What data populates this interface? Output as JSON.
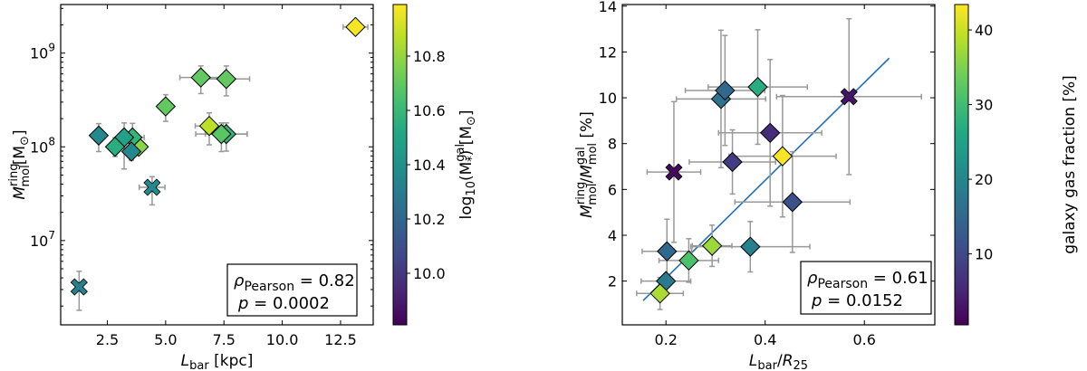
{
  "chart_data": [
    {
      "type": "scatter",
      "xlabel": {
        "main": "L",
        "sub": "bar",
        "rest": " [kpc]"
      },
      "ylabel": {
        "main": "M",
        "sup": "ring",
        "sub": "mol",
        "rest": "[M",
        "rest_sub": "⊙",
        "close": "]"
      },
      "x_scale": "linear",
      "y_scale": "log",
      "xlim": [
        0.5,
        13.9
      ],
      "ylim": [
        1260000.0,
        3300000000.0
      ],
      "xticks": [
        2.5,
        5.0,
        7.5,
        10.0,
        12.5
      ],
      "xtick_labels": [
        "2.5",
        "5.0",
        "7.5",
        "10.0",
        "12.5"
      ],
      "yticks": [
        10000000.0,
        100000000.0,
        1000000000.0
      ],
      "ytick_labels": [
        {
          "base": "10",
          "exp": "7"
        },
        {
          "base": "10",
          "exp": "8"
        },
        {
          "base": "10",
          "exp": "9"
        }
      ],
      "colorbar": {
        "label": {
          "pre": "log",
          "pre_sub": "10",
          "mid": "(M",
          "sup": "gal",
          "sub": "*",
          "rest": ") [M",
          "rest_sub": "⊙",
          "close": "]"
        },
        "range": [
          9.81,
          10.99
        ],
        "ticks": [
          10.0,
          10.2,
          10.4,
          10.6,
          10.8
        ],
        "tick_labels": [
          "10.0",
          "10.2",
          "10.4",
          "10.6",
          "10.8"
        ],
        "colormap": "viridis"
      },
      "annotation": {
        "rho_symbol": "ρ",
        "rho_sub": "Pearson",
        "rho_value": " = 0.82",
        "p_label": "p",
        "p_value": " =  0.0002"
      },
      "points": [
        {
          "x": 13.14,
          "y": 1900000000.0,
          "xerr": 0.53,
          "ylo": 1700000000.0,
          "yhi": 2100000000.0,
          "c": 10.98,
          "marker": "diamond"
        },
        {
          "x": 6.51,
          "y": 550000000.0,
          "xerr": 0.9,
          "ylo": 370000000.0,
          "yhi": 730000000.0,
          "c": 10.7,
          "marker": "diamond"
        },
        {
          "x": 7.6,
          "y": 530000000.0,
          "xerr": 1.0,
          "ylo": 350000000.0,
          "yhi": 730000000.0,
          "c": 10.7,
          "marker": "diamond"
        },
        {
          "x": 5.0,
          "y": 270000000.0,
          "xerr": 0.1,
          "ylo": 187000000.0,
          "yhi": 360000000.0,
          "c": 10.7,
          "marker": "diamond"
        },
        {
          "x": 6.87,
          "y": 167000000.0,
          "xerr": 0.6,
          "ylo": 105000000.0,
          "yhi": 230000000.0,
          "c": 10.87,
          "marker": "diamond"
        },
        {
          "x": 7.6,
          "y": 137000000.0,
          "xerr": 0.9,
          "ylo": 90000000.0,
          "yhi": 180000000.0,
          "c": 10.58,
          "marker": "diamond"
        },
        {
          "x": 7.39,
          "y": 137000000.0,
          "xerr": 1.1,
          "ylo": 89000000.0,
          "yhi": 180000000.0,
          "c": 10.68,
          "marker": "diamond"
        },
        {
          "x": 2.13,
          "y": 132000000.0,
          "xerr": 0.1,
          "ylo": 89000000.0,
          "yhi": 177000000.0,
          "c": 10.36,
          "marker": "diamond"
        },
        {
          "x": 3.85,
          "y": 100000000.0,
          "xerr": 0.1,
          "ylo": 85000000.0,
          "yhi": 115000000.0,
          "c": 10.78,
          "marker": "diamond"
        },
        {
          "x": 3.58,
          "y": 126000000.0,
          "xerr": 0.5,
          "ylo": 90000000.0,
          "yhi": 178000000.0,
          "c": 10.58,
          "marker": "diamond"
        },
        {
          "x": 3.22,
          "y": 126000000.0,
          "xerr": 0.15,
          "ylo": 58000000.0,
          "yhi": 180000000.0,
          "c": 10.48,
          "marker": "diamond"
        },
        {
          "x": 2.83,
          "y": 100000000.0,
          "xerr": 0.15,
          "ylo": 79000000.0,
          "yhi": 125000000.0,
          "c": 10.55,
          "marker": "diamond"
        },
        {
          "x": 3.53,
          "y": 89000000.0,
          "xerr": 0.15,
          "ylo": 72000000.0,
          "yhi": 110000000.0,
          "c": 10.36,
          "marker": "diamond"
        },
        {
          "x": 4.42,
          "y": 37000000.0,
          "xerr": 0.55,
          "ylo": 24000000.0,
          "yhi": 48000000.0,
          "c": 10.36,
          "marker": "x"
        },
        {
          "x": 1.29,
          "y": 3200000.0,
          "xerr": 0.1,
          "ylo": 1800000.0,
          "yhi": 4700000.0,
          "c": 10.32,
          "marker": "x"
        }
      ]
    },
    {
      "type": "scatter",
      "xlabel": {
        "main": "L",
        "sub": "bar",
        "mid": "/R",
        "sub2": "25"
      },
      "ylabel": {
        "main": "M",
        "sup": "ring",
        "sub": "mol",
        "mid": "/M",
        "sup2": "gal",
        "sub2": "mol",
        "rest": " [%]"
      },
      "x_scale": "linear",
      "y_scale": "linear",
      "xlim": [
        0.112,
        0.742
      ],
      "ylim": [
        0.09,
        14.07
      ],
      "xticks": [
        0.2,
        0.4,
        0.6
      ],
      "xtick_labels": [
        "0.2",
        "0.4",
        "0.6"
      ],
      "yticks": [
        2,
        4,
        6,
        8,
        10,
        12,
        14
      ],
      "ytick_labels": [
        "2",
        "4",
        "6",
        "8",
        "10",
        "12",
        "14"
      ],
      "colorbar": {
        "label": "galaxy gas fraction [%]",
        "range": [
          0.5,
          43.4
        ],
        "ticks": [
          10,
          20,
          30,
          40
        ],
        "tick_labels": [
          "10",
          "20",
          "30",
          "40"
        ],
        "colormap": "viridis"
      },
      "fit_line": {
        "x": [
          0.154,
          0.65
        ],
        "y": [
          1.15,
          11.73
        ],
        "color": "#1f6fbf"
      },
      "annotation": {
        "rho_symbol": "ρ",
        "rho_sub": "Pearson",
        "rho_value": " = 0.61",
        "p_label": "p",
        "p_value": " =  0.0152"
      },
      "points": [
        {
          "x": 0.311,
          "y": 9.95,
          "xerr": 0.09,
          "yerr": 3.0,
          "c": 17,
          "marker": "diamond"
        },
        {
          "x": 0.319,
          "y": 10.32,
          "xerr": 0.08,
          "yerr": 2.4,
          "c": 15,
          "marker": "diamond"
        },
        {
          "x": 0.385,
          "y": 10.47,
          "xerr": 0.1,
          "yerr": 2.5,
          "c": 27,
          "marker": "diamond"
        },
        {
          "x": 0.569,
          "y": 10.05,
          "xerr": 0.146,
          "yerr": 3.4,
          "c": 3,
          "marker": "x"
        },
        {
          "x": 0.41,
          "y": 8.47,
          "xerr": 0.104,
          "yerr": 3.2,
          "c": 6,
          "marker": "diamond"
        },
        {
          "x": 0.435,
          "y": 7.45,
          "xerr": 0.108,
          "yerr": 2.65,
          "c": 43,
          "marker": "diamond"
        },
        {
          "x": 0.334,
          "y": 7.2,
          "xerr": 0.087,
          "yerr": 1.4,
          "c": 8,
          "marker": "diamond"
        },
        {
          "x": 0.216,
          "y": 6.76,
          "xerr": 0.054,
          "yerr": 3.07,
          "c": 1.5,
          "marker": "x"
        },
        {
          "x": 0.455,
          "y": 5.45,
          "xerr": 0.116,
          "yerr": 2.2,
          "c": 11,
          "marker": "diamond"
        },
        {
          "x": 0.202,
          "y": 3.3,
          "xerr": 0.05,
          "yerr": 1.4,
          "c": 15,
          "marker": "diamond"
        },
        {
          "x": 0.293,
          "y": 3.54,
          "xerr": 0.04,
          "yerr": 0.9,
          "c": 37,
          "marker": "diamond"
        },
        {
          "x": 0.37,
          "y": 3.5,
          "xerr": 0.12,
          "yerr": 1.1,
          "c": 19,
          "marker": "diamond"
        },
        {
          "x": 0.246,
          "y": 2.9,
          "xerr": 0.06,
          "yerr": 0.95,
          "c": 31,
          "marker": "diamond"
        },
        {
          "x": 0.2,
          "y": 2.0,
          "xerr": 0.05,
          "yerr": 0.3,
          "c": 18,
          "marker": "diamond"
        },
        {
          "x": 0.188,
          "y": 1.46,
          "xerr": 0.047,
          "yerr": 0.7,
          "c": 38,
          "marker": "diamond"
        }
      ]
    }
  ]
}
